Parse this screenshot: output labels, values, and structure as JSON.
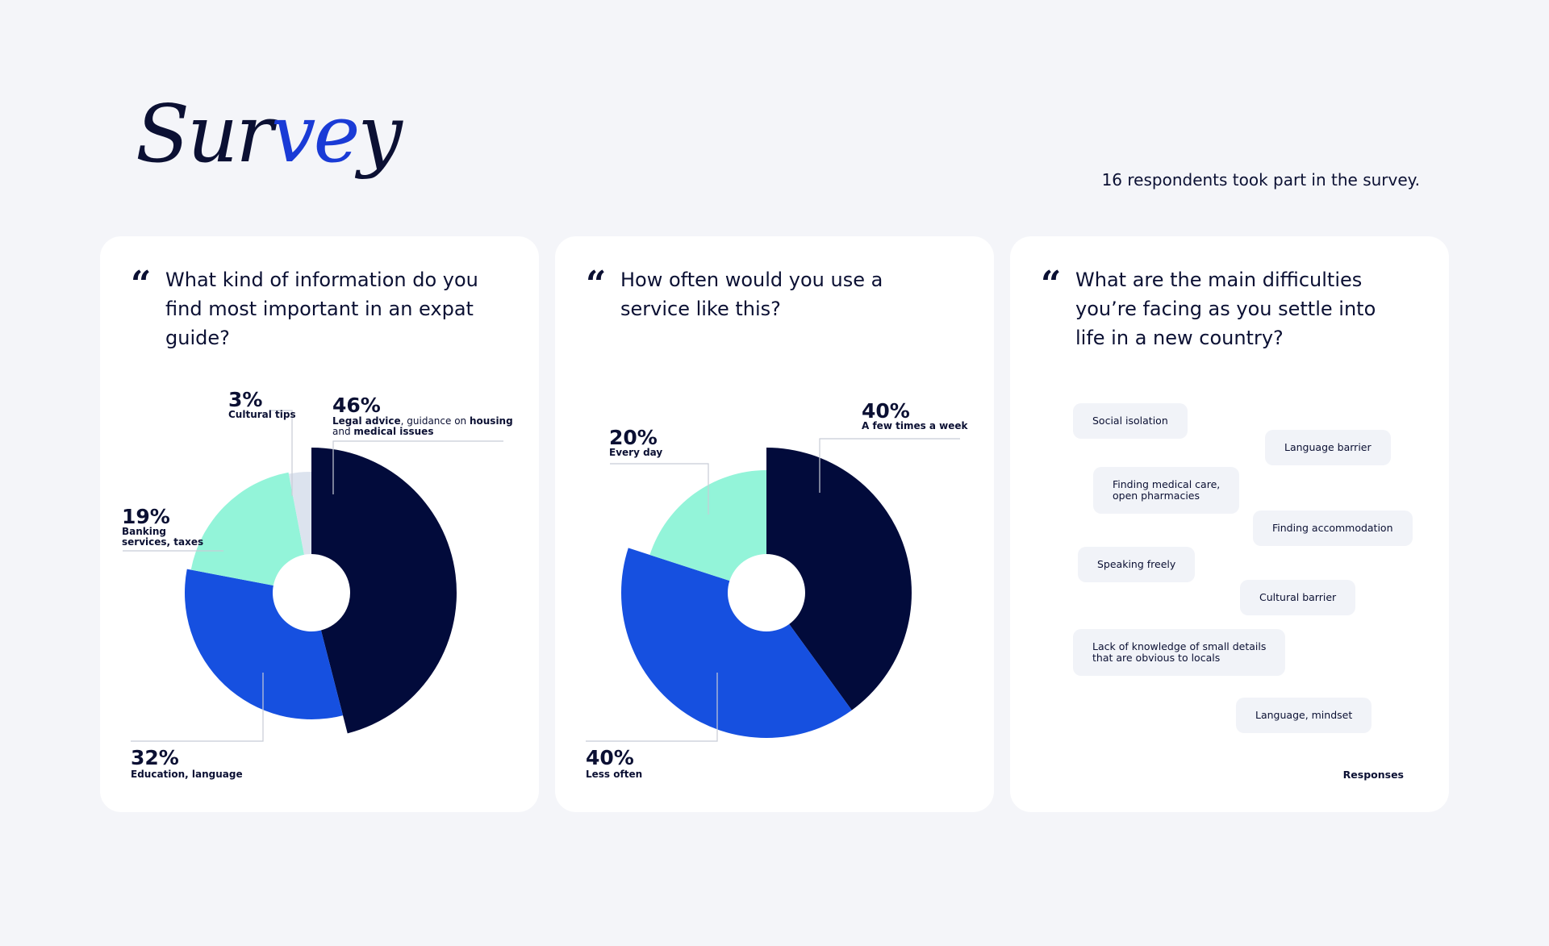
{
  "header": {
    "title_parts": [
      "Sur",
      "ve",
      "y"
    ],
    "respondents_text": "16 respondents took part in the survey."
  },
  "colors": {
    "navy": "#020b3b",
    "blue": "#1650e0",
    "mint": "#93f4d9",
    "light": "#dce3ee",
    "accent": "#1a3bd6",
    "background": "#f4f5f9"
  },
  "cards": [
    {
      "quote_icon": "quote-icon",
      "question": "What kind of information do you find most important in an expat guide?"
    },
    {
      "quote_icon": "quote-icon",
      "question": "How often would you use a service like this?"
    },
    {
      "quote_icon": "quote-icon",
      "question": "What are the main difficulties you’re facing as you settle into life in a new country?",
      "responses_label": "Responses",
      "tags": [
        "Social isolation",
        "Language barrier",
        "Finding medical care,\nopen pharmacies",
        "Finding accommodation",
        "Speaking freely",
        "Cultural barrier",
        "Lack of knowledge of small details\n that are obvious to locals",
        "Language, mindset"
      ]
    }
  ],
  "chart_data": [
    {
      "type": "pie",
      "title": "What kind of information do you find most important in an expat guide?",
      "slices": [
        {
          "value": 46,
          "percent_label": "46%",
          "label": "Legal advice, guidance on housing and medical issues",
          "label_parts": [
            {
              "t": "Legal advice",
              "b": true
            },
            {
              "t": ", guidance on ",
              "b": false
            },
            {
              "t": "housing",
              "b": true
            },
            {
              "t": "and ",
              "b": false,
              "line": 2
            },
            {
              "t": "medical issues",
              "b": true,
              "line": 2
            }
          ],
          "color": "navy"
        },
        {
          "value": 32,
          "percent_label": "32%",
          "label": "Education, language",
          "color": "blue"
        },
        {
          "value": 19,
          "percent_label": "19%",
          "label": "Banking services, taxes",
          "label_lines": [
            "Banking",
            "services, taxes"
          ],
          "color": "mint"
        },
        {
          "value": 3,
          "percent_label": "3%",
          "label": "Cultural tips",
          "color": "light"
        }
      ]
    },
    {
      "type": "pie",
      "title": "How often would you use a service like this?",
      "slices": [
        {
          "value": 40,
          "percent_label": "40%",
          "label": "A few times a week",
          "color": "navy"
        },
        {
          "value": 40,
          "percent_label": "40%",
          "label": "Less often",
          "color": "blue"
        },
        {
          "value": 20,
          "percent_label": "20%",
          "label": "Every day",
          "color": "mint"
        }
      ]
    }
  ]
}
